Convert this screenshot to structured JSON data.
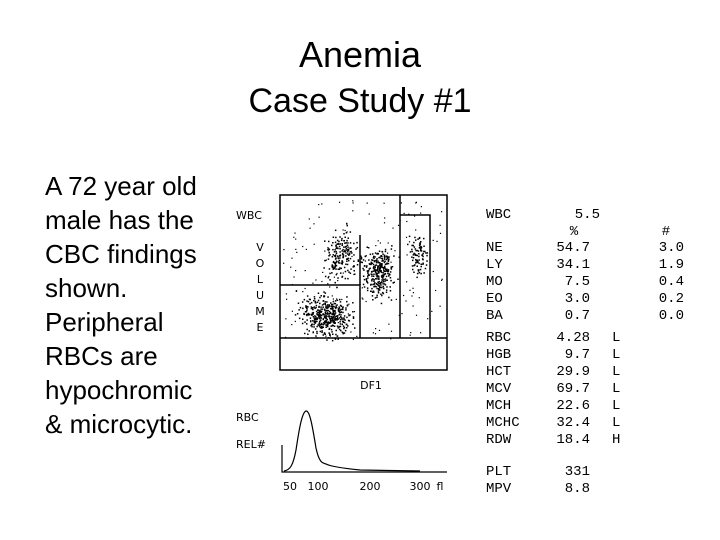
{
  "header": {
    "title": "Anemia",
    "subtitle": "Case Study #1"
  },
  "body": {
    "lines": [
      "A 72 year old",
      "male has the",
      "CBC findings",
      "shown.",
      "Peripheral",
      "RBCs are",
      "hypochromic",
      "& microcytic."
    ]
  },
  "scattergram": {
    "y_label": "WBC",
    "volume_letters": [
      "V",
      "O",
      "L",
      "U",
      "M",
      "E"
    ],
    "x_label": "DF1"
  },
  "histogram": {
    "label": "RBC",
    "y_label": "REL#",
    "x_ticks": [
      "50",
      "100",
      "200",
      "300",
      "fl"
    ]
  },
  "results": {
    "wbc": {
      "label": "WBC",
      "value": "5.5"
    },
    "diff": {
      "pct_header": "%",
      "abs_header": "#",
      "rows": [
        [
          "NE",
          "54.7",
          "3.0"
        ],
        [
          "LY",
          "34.1",
          "1.9"
        ],
        [
          "MO",
          "7.5",
          "0.4"
        ],
        [
          "EO",
          "3.0",
          "0.2"
        ],
        [
          "BA",
          "0.7",
          "0.0"
        ]
      ]
    },
    "red": {
      "rows": [
        [
          "RBC",
          "4.28",
          "L"
        ],
        [
          "HGB",
          "9.7",
          "L"
        ],
        [
          "HCT",
          "29.9",
          "L"
        ],
        [
          "MCV",
          "69.7",
          "L"
        ],
        [
          "MCH",
          "22.6",
          "L"
        ],
        [
          "MCHC",
          "32.4",
          "L"
        ],
        [
          "RDW",
          "18.4",
          "H"
        ]
      ]
    },
    "platelets": {
      "rows": [
        [
          "PLT",
          "331"
        ],
        [
          "MPV",
          "8.8"
        ]
      ]
    }
  }
}
